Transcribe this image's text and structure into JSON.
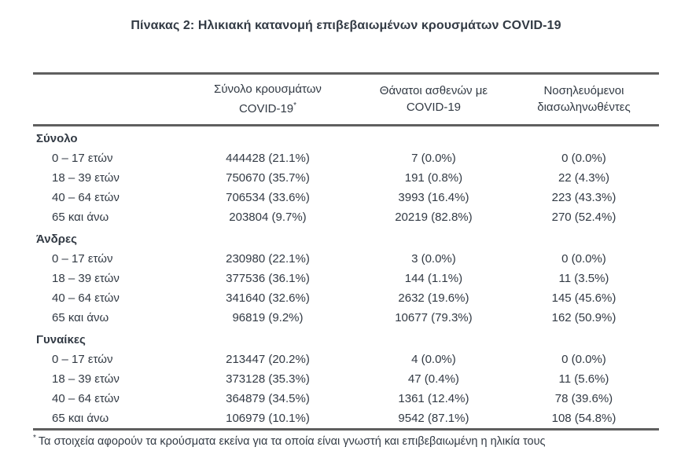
{
  "title": "Πίνακας 2: Ηλικιακή κατανομή επιβεβαιωμένων κρουσμάτων COVID-19",
  "table": {
    "headers": [
      {
        "line1": "Σύνολο κρουσμάτων",
        "line2": "COVID-19",
        "sup": "*"
      },
      {
        "line1": "Θάνατοι ασθενών με",
        "line2": "COVID-19",
        "sup": ""
      },
      {
        "line1": "Νοσηλευόμενοι",
        "line2": "διασωληνωθέντες",
        "sup": ""
      }
    ],
    "sections": [
      {
        "label": "Σύνολο",
        "rows": [
          {
            "label": "0 – 17 ετών",
            "cases": "444428 (21.1%)",
            "deaths": "7 (0.0%)",
            "intubated": "0 (0.0%)"
          },
          {
            "label": "18 – 39 ετών",
            "cases": "750670 (35.7%)",
            "deaths": "191 (0.8%)",
            "intubated": "22 (4.3%)"
          },
          {
            "label": "40 – 64 ετών",
            "cases": "706534 (33.6%)",
            "deaths": "3993 (16.4%)",
            "intubated": "223 (43.3%)"
          },
          {
            "label": "65 και άνω",
            "cases": "203804 (9.7%)",
            "deaths": "20219 (82.8%)",
            "intubated": "270 (52.4%)"
          }
        ]
      },
      {
        "label": "Άνδρες",
        "rows": [
          {
            "label": "0 – 17 ετών",
            "cases": "230980 (22.1%)",
            "deaths": "3 (0.0%)",
            "intubated": "0 (0.0%)"
          },
          {
            "label": "18 – 39 ετών",
            "cases": "377536 (36.1%)",
            "deaths": "144 (1.1%)",
            "intubated": "11 (3.5%)"
          },
          {
            "label": "40 – 64 ετών",
            "cases": "341640 (32.6%)",
            "deaths": "2632 (19.6%)",
            "intubated": "145 (45.6%)"
          },
          {
            "label": "65 και άνω",
            "cases": "96819 (9.2%)",
            "deaths": "10677 (79.3%)",
            "intubated": "162 (50.9%)"
          }
        ]
      },
      {
        "label": "Γυναίκες",
        "rows": [
          {
            "label": "0 – 17 ετών",
            "cases": "213447 (20.2%)",
            "deaths": "4 (0.0%)",
            "intubated": "0 (0.0%)"
          },
          {
            "label": "18 – 39 ετών",
            "cases": "373128 (35.3%)",
            "deaths": "47 (0.4%)",
            "intubated": "11 (5.6%)"
          },
          {
            "label": "40 – 64 ετών",
            "cases": "364879 (34.5%)",
            "deaths": "1361 (12.4%)",
            "intubated": "78 (39.6%)"
          },
          {
            "label": "65 και άνω",
            "cases": "106979 (10.1%)",
            "deaths": "9542 (87.1%)",
            "intubated": "108 (54.8%)"
          }
        ]
      }
    ]
  },
  "footnote": {
    "marker": "*",
    "text": "Τα στοιχεία αφορούν τα κρούσματα εκείνα για τα οποία είναι γνωστή και επιβεβαιωμένη η ηλικία τους"
  },
  "colors": {
    "text": "#323a44",
    "border": "#5f5f5f",
    "background": "#ffffff"
  }
}
